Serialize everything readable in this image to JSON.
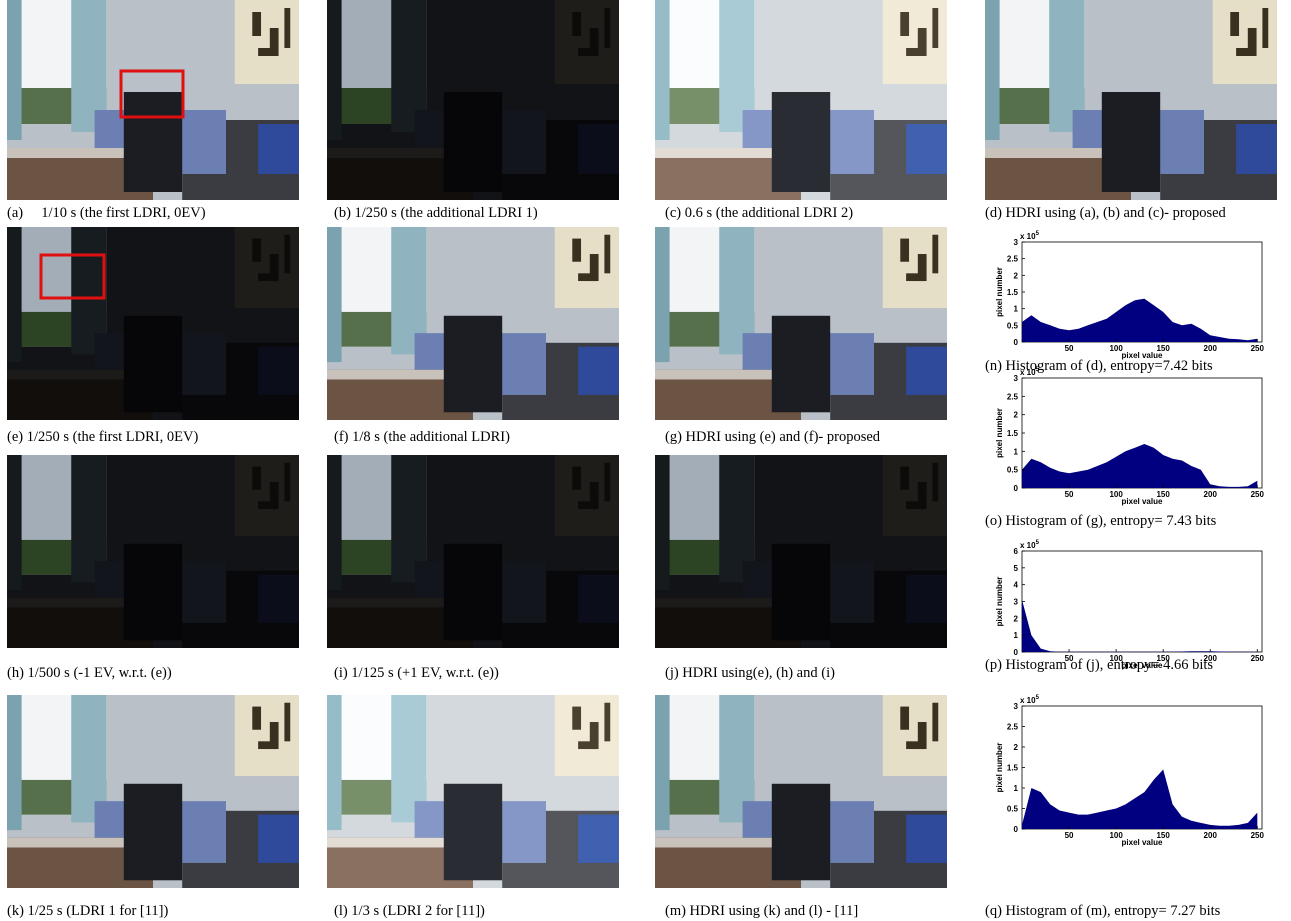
{
  "panels": [
    {
      "caption": "(a)     1/10 s (the first LDRI, 0EV)"
    },
    {
      "caption": "(b) 1/250 s (the additional LDRI 1)"
    },
    {
      "caption": "(c) 0.6 s (the additional LDRI 2)"
    },
    {
      "caption": "(d) HDRI using (a), (b) and (c)- proposed"
    },
    {
      "caption": "(e) 1/250 s (the first LDRI, 0EV)"
    },
    {
      "caption": "(f) 1/8 s (the additional LDRI)"
    },
    {
      "caption": "(g) HDRI using (e) and (f)- proposed"
    },
    {
      "caption": "(h) 1/500 s (-1 EV, w.r.t. (e))"
    },
    {
      "caption": "(i) 1/125 s (+1 EV, w.r.t. (e))"
    },
    {
      "caption": "(j) HDRI using(e), (h) and (i)"
    },
    {
      "caption": "(k) 1/25 s (LDRI 1 for [11])"
    },
    {
      "caption": "(l) 1/3 s (LDRI 2 for [11])"
    },
    {
      "caption": "(m) HDRI using (k) and (l) - [11]"
    }
  ],
  "histograms": [
    {
      "type": "area",
      "caption": "(n) Histogram of (d), entropy=7.42 bits",
      "xlabel": "pixel value",
      "ylabel": "pixel number",
      "scale_base": "x 10",
      "scale_power": "5",
      "color": "#000080",
      "x": [
        0,
        10,
        20,
        30,
        40,
        50,
        60,
        70,
        80,
        90,
        100,
        110,
        120,
        130,
        140,
        150,
        160,
        170,
        180,
        190,
        200,
        210,
        220,
        230,
        240,
        250
      ],
      "values": [
        0.6,
        0.8,
        0.6,
        0.5,
        0.4,
        0.35,
        0.4,
        0.5,
        0.6,
        0.7,
        0.9,
        1.1,
        1.25,
        1.3,
        1.1,
        0.9,
        0.6,
        0.5,
        0.55,
        0.4,
        0.2,
        0.15,
        0.1,
        0.08,
        0.05,
        0.1
      ],
      "xlim": [
        0,
        255
      ],
      "ylim": [
        0,
        3
      ],
      "xticks": [
        50,
        100,
        150,
        200,
        250
      ],
      "yticks": [
        0,
        0.5,
        1,
        1.5,
        2,
        2.5,
        3
      ]
    },
    {
      "type": "area",
      "caption": "(o) Histogram of (g), entropy= 7.43 bits",
      "xlabel": "pixel value",
      "ylabel": "pixel number",
      "scale_base": "x 10",
      "scale_power": "5",
      "color": "#000080",
      "x": [
        0,
        10,
        20,
        30,
        40,
        50,
        60,
        70,
        80,
        90,
        100,
        110,
        120,
        130,
        140,
        150,
        160,
        170,
        180,
        190,
        200,
        210,
        220,
        230,
        240,
        250
      ],
      "values": [
        0.5,
        0.8,
        0.7,
        0.55,
        0.45,
        0.4,
        0.45,
        0.5,
        0.6,
        0.7,
        0.85,
        1.0,
        1.1,
        1.2,
        1.1,
        0.9,
        0.8,
        0.75,
        0.6,
        0.5,
        0.1,
        0.05,
        0.03,
        0.03,
        0.05,
        0.2
      ],
      "xlim": [
        0,
        255
      ],
      "ylim": [
        0,
        3
      ],
      "xticks": [
        50,
        100,
        150,
        200,
        250
      ],
      "yticks": [
        0,
        0.5,
        1,
        1.5,
        2,
        2.5,
        3
      ]
    },
    {
      "type": "area",
      "caption": "(p) Histogram of (j), entropy= 4.66 bits",
      "xlabel": "pixel value",
      "ylabel": "pixel number",
      "scale_base": "x 10",
      "scale_power": "5",
      "color": "#000080",
      "x": [
        0,
        10,
        20,
        30,
        40,
        50,
        60,
        70,
        80,
        90,
        100,
        110,
        120,
        130,
        140,
        150,
        160,
        170,
        180,
        190,
        200,
        210,
        220,
        230,
        240,
        250
      ],
      "values": [
        3.1,
        1.0,
        0.2,
        0.05,
        0.02,
        0.01,
        0.01,
        0.01,
        0.01,
        0.01,
        0.01,
        0.01,
        0.01,
        0.01,
        0.02,
        0.02,
        0.02,
        0.03,
        0.04,
        0.05,
        0.05,
        0.03,
        0.02,
        0.01,
        0.01,
        0.01
      ],
      "xlim": [
        0,
        255
      ],
      "ylim": [
        0,
        6
      ],
      "xticks": [
        50,
        100,
        150,
        200,
        250
      ],
      "yticks": [
        0,
        1,
        2,
        3,
        4,
        5,
        6
      ]
    },
    {
      "type": "area",
      "caption": "(q) Histogram of (m), entropy= 7.27 bits",
      "xlabel": "pixel value",
      "ylabel": "pixel number",
      "scale_base": "x 10",
      "scale_power": "5",
      "color": "#000080",
      "x": [
        0,
        10,
        20,
        30,
        40,
        50,
        60,
        70,
        80,
        90,
        100,
        110,
        120,
        130,
        140,
        150,
        160,
        170,
        180,
        190,
        200,
        210,
        220,
        230,
        240,
        250
      ],
      "values": [
        0.1,
        1.0,
        0.9,
        0.6,
        0.45,
        0.4,
        0.35,
        0.35,
        0.4,
        0.45,
        0.5,
        0.6,
        0.75,
        0.9,
        1.2,
        1.45,
        0.6,
        0.3,
        0.2,
        0.15,
        0.1,
        0.08,
        0.08,
        0.1,
        0.15,
        0.4
      ],
      "xlim": [
        0,
        255
      ],
      "ylim": [
        0,
        3
      ],
      "xticks": [
        50,
        100,
        150,
        200,
        250
      ],
      "yticks": [
        0,
        0.5,
        1,
        1.5,
        2,
        2.5,
        3
      ]
    }
  ]
}
